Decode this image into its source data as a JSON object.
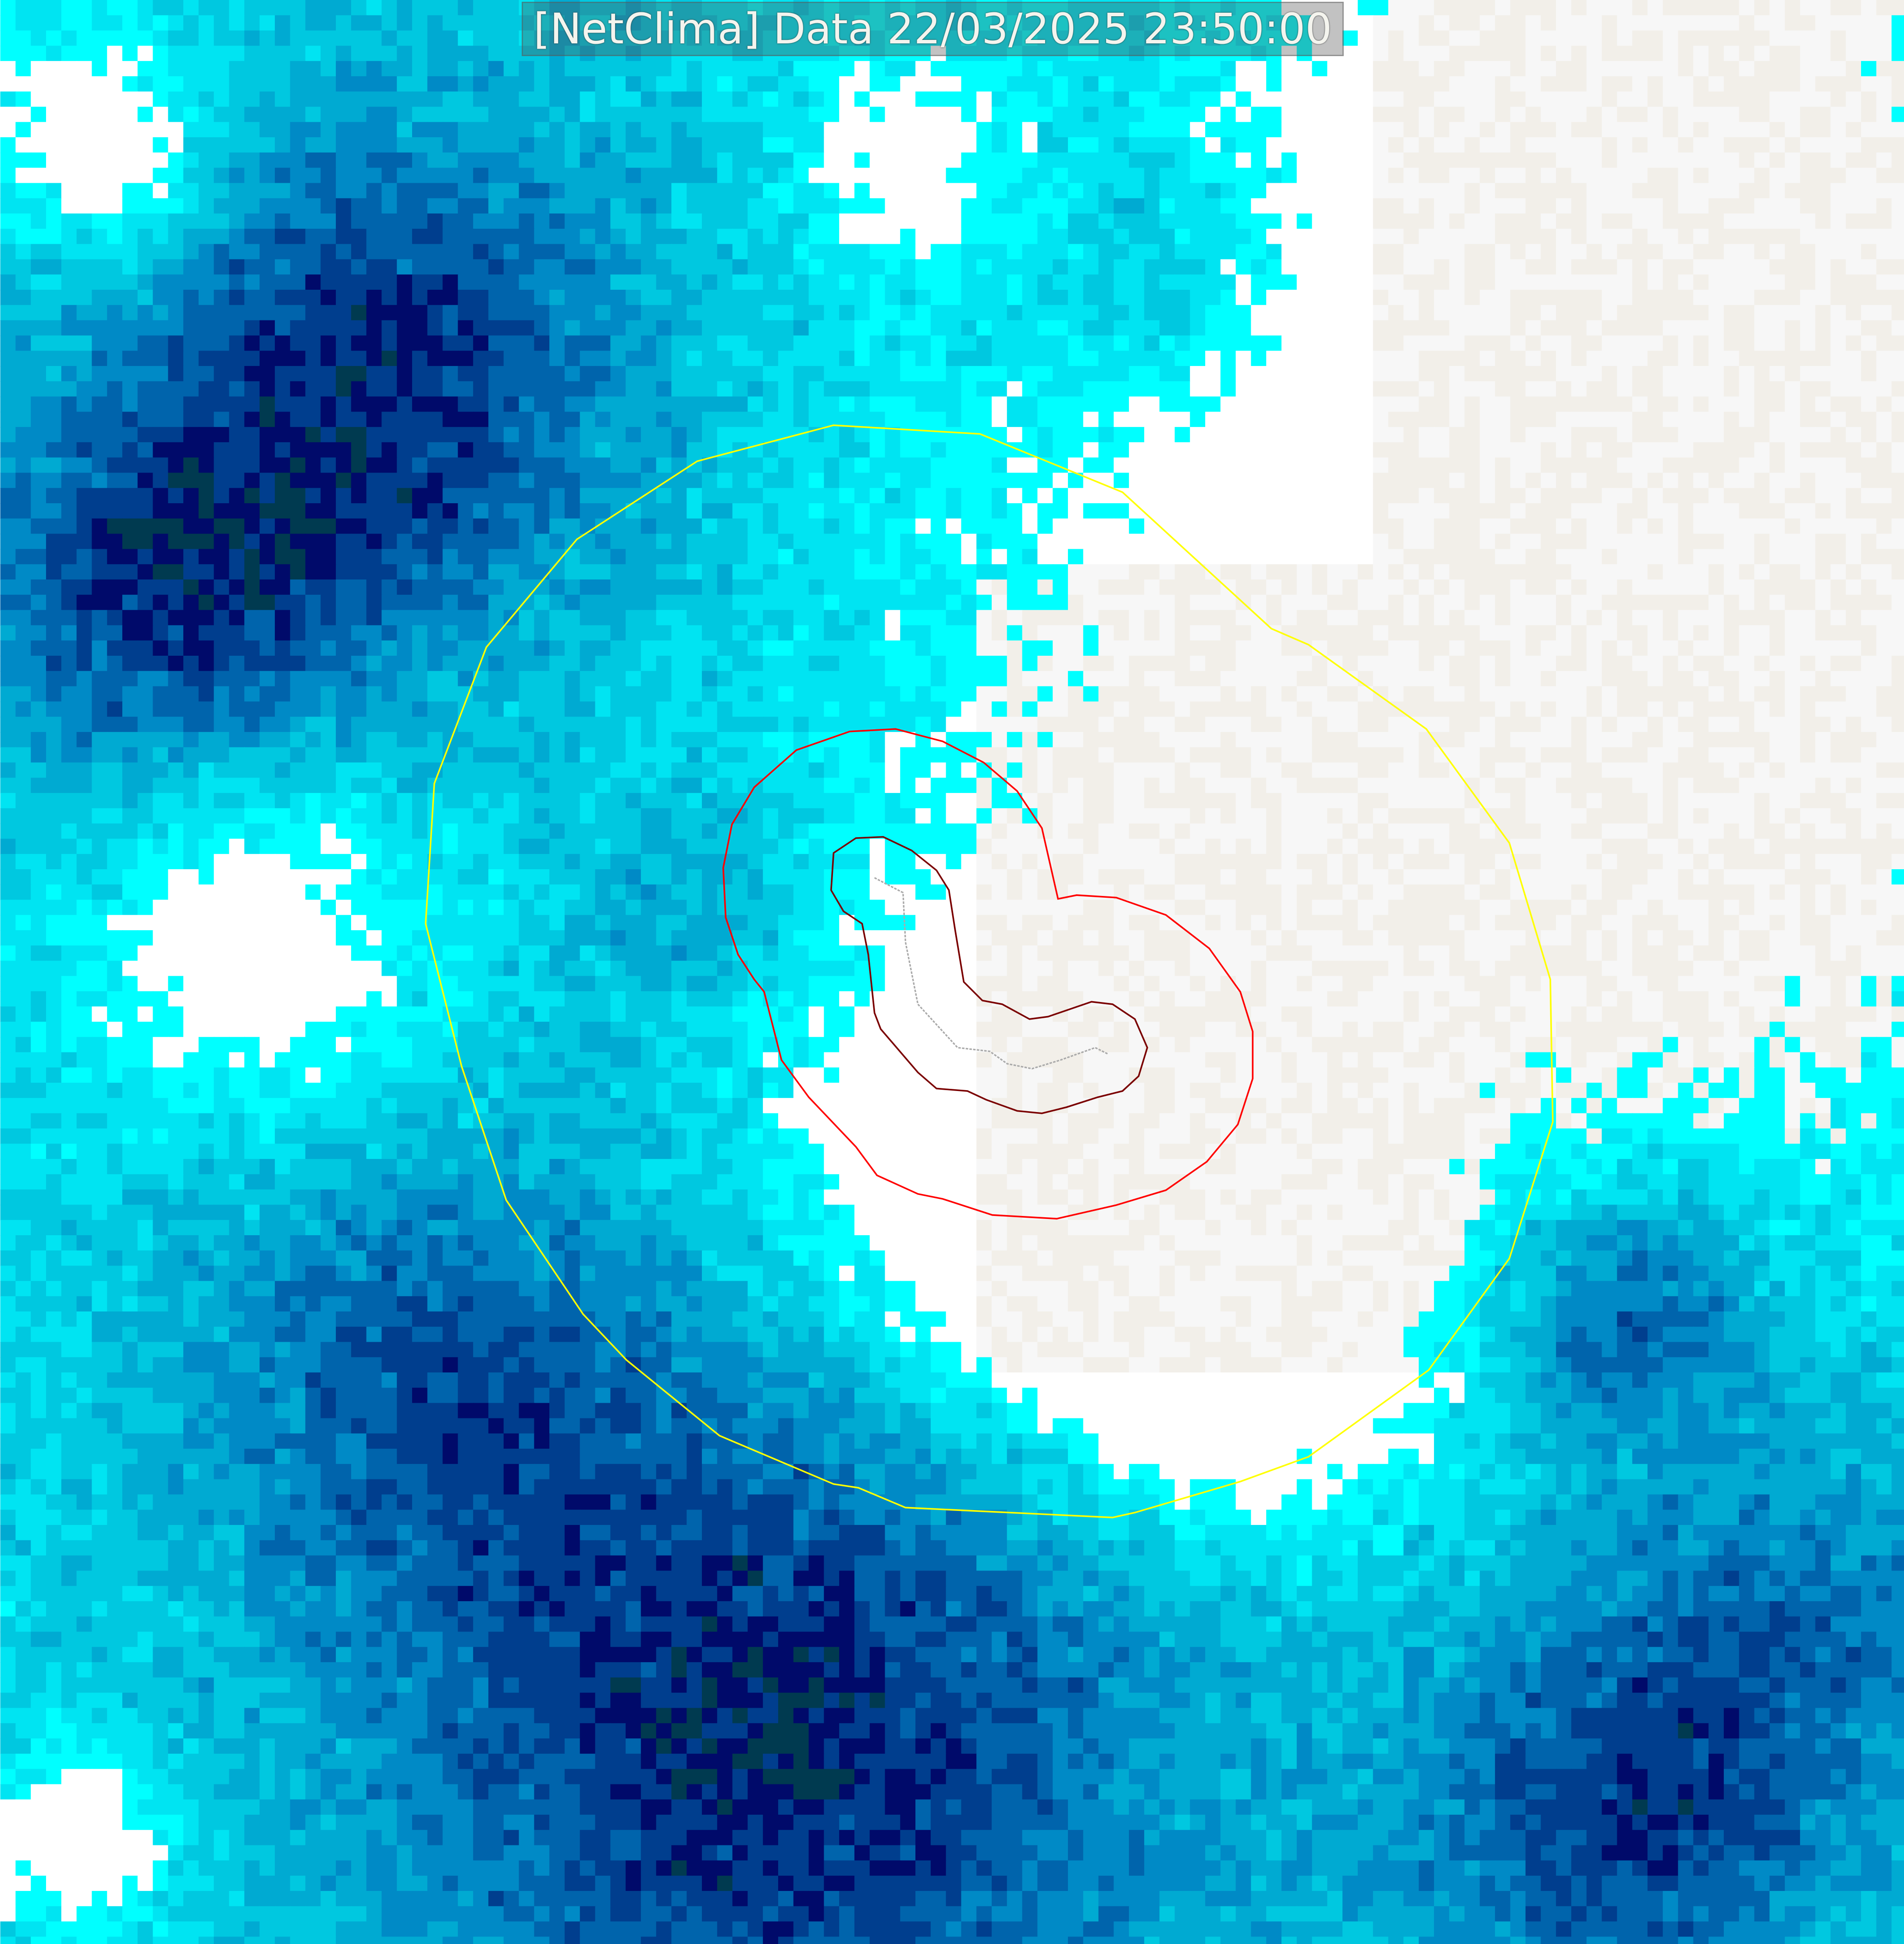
{
  "title": "[NetClima] Data 22/03/2025 23:50:00",
  "radar_palette": [
    "#ffffff",
    "#00ffff",
    "#00e4f2",
    "#00c8e0",
    "#00aad2",
    "#008ac6",
    "#0064ac",
    "#003e8e",
    "#000a6a",
    "#003a50",
    "#00a030",
    "#00e020"
  ],
  "overlay_colors": {
    "outer_ring": "#ffff00",
    "middle_contour": "#ff0000",
    "inner_contour": "#7a0000",
    "track": "#aaaaaa"
  },
  "basemap_color": "#f2efe9"
}
